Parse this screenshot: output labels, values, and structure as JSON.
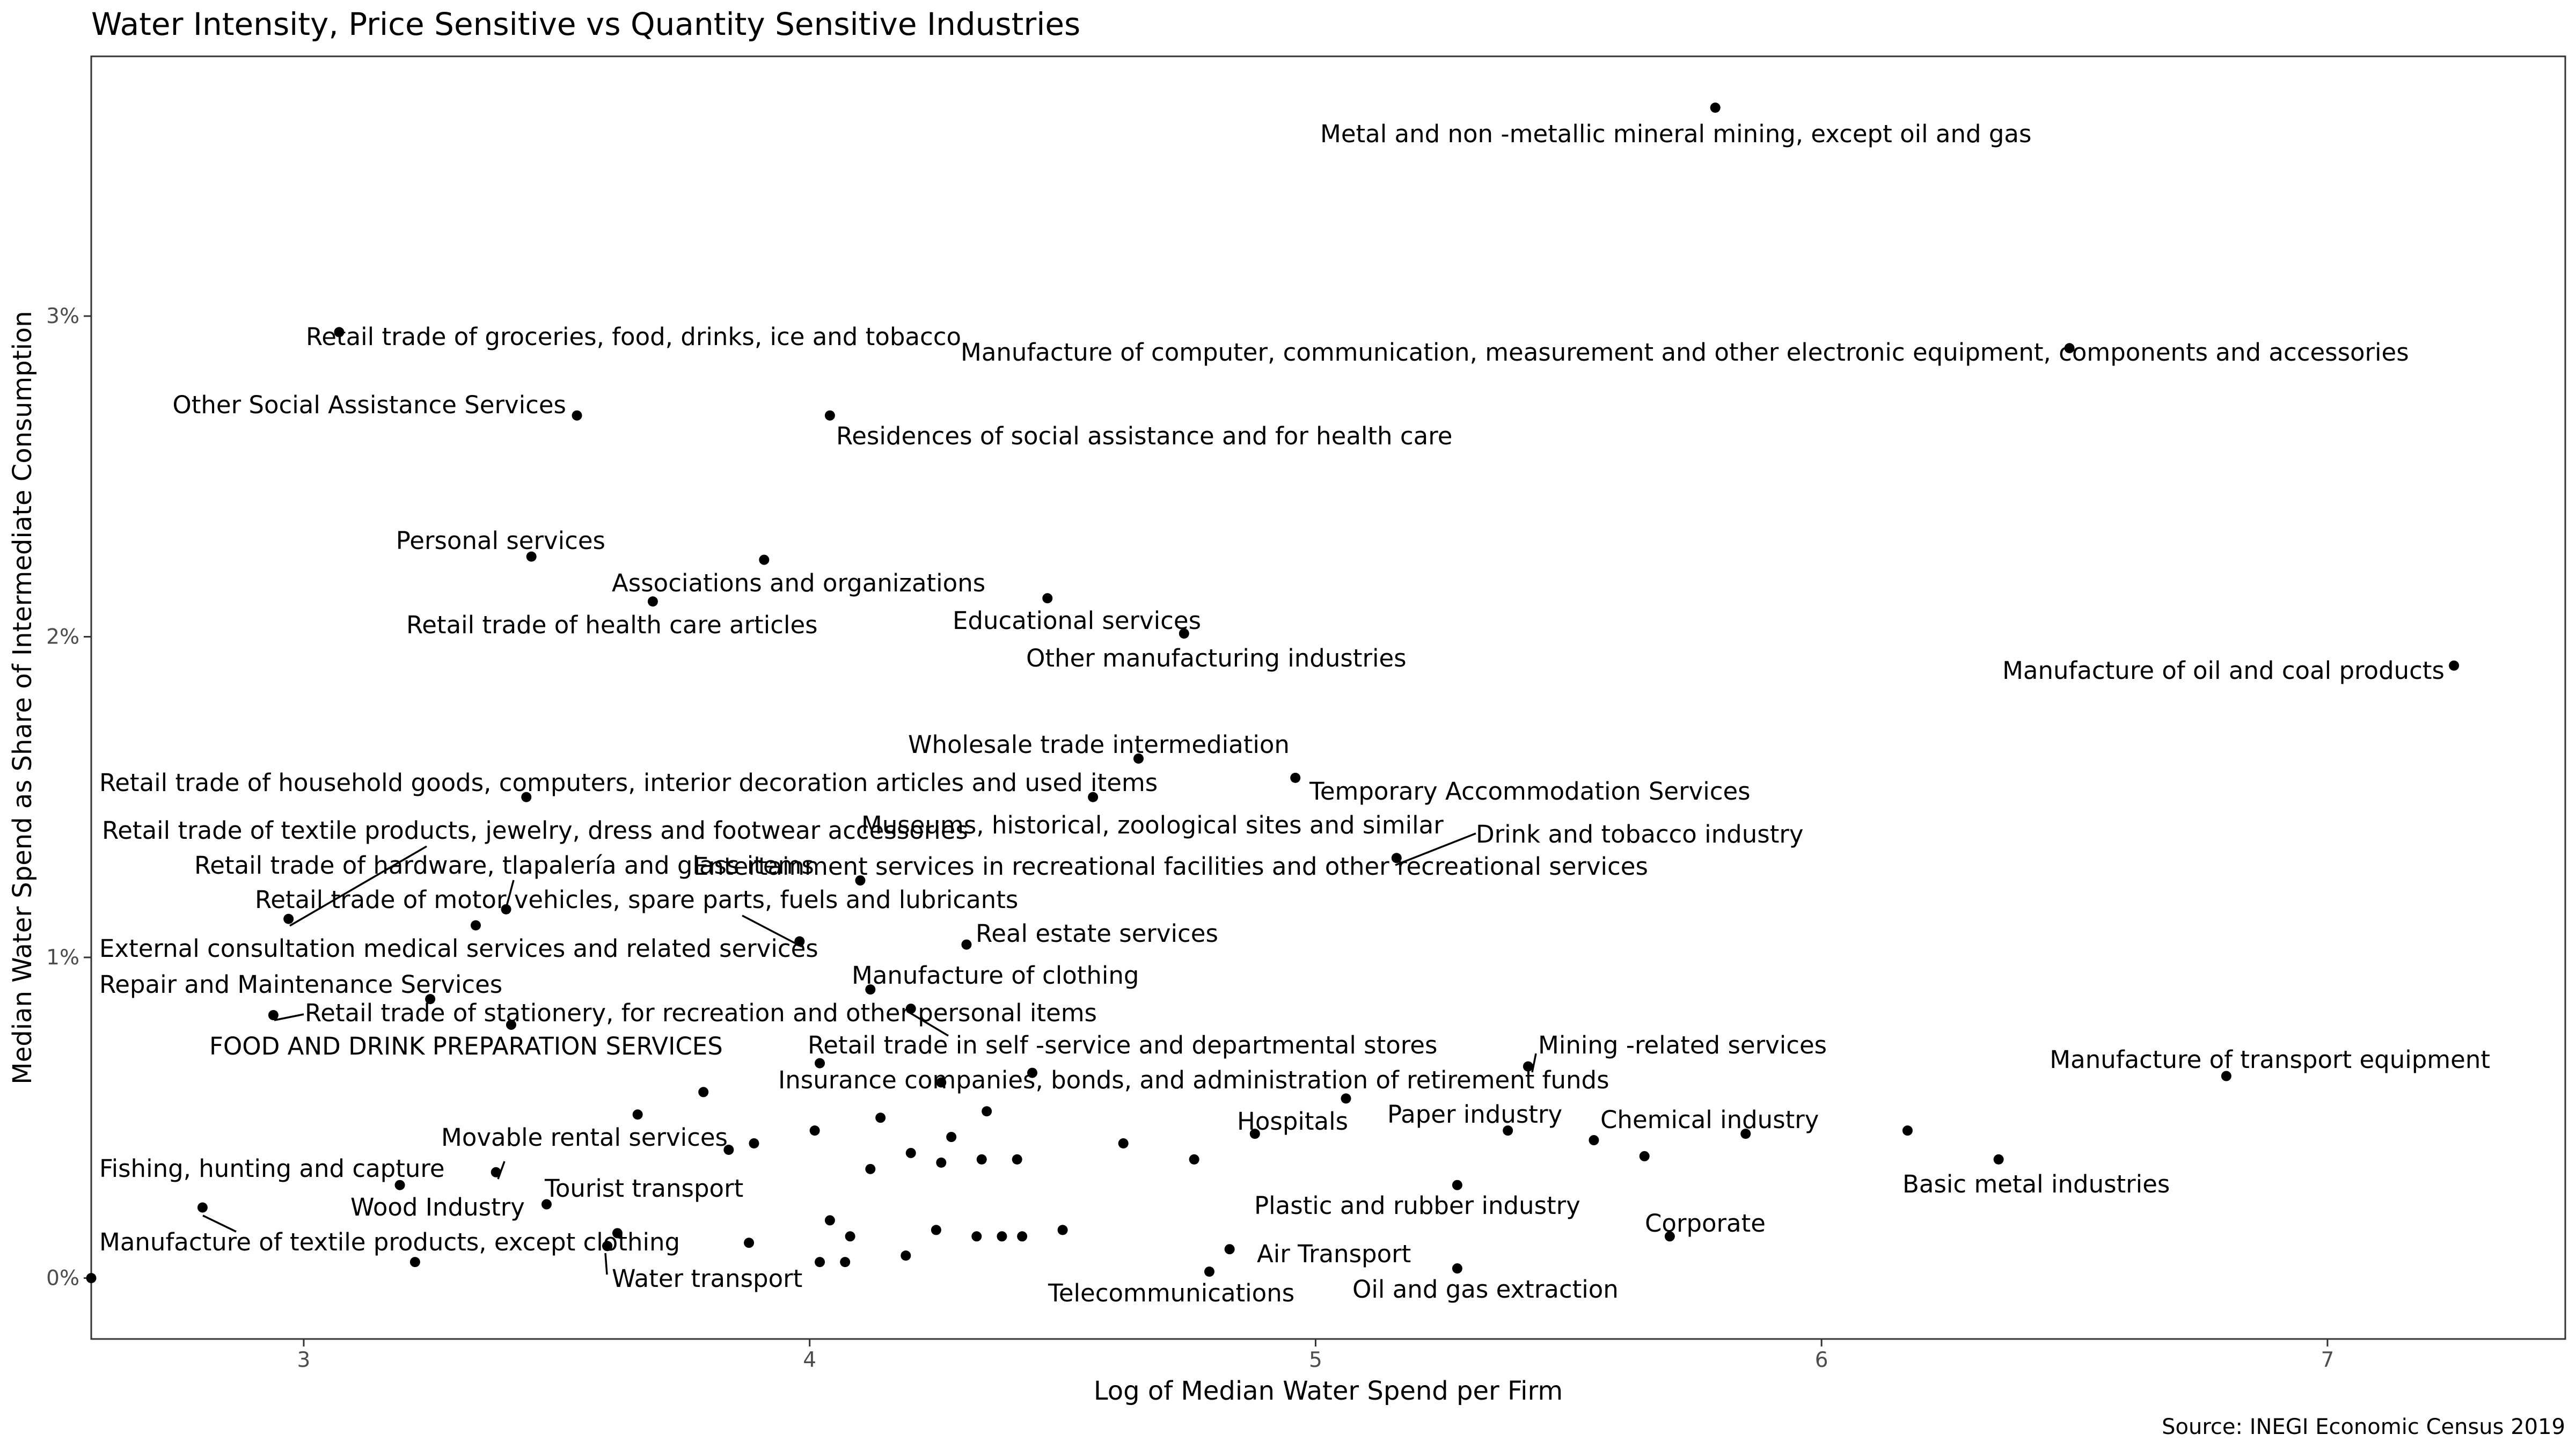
{
  "chart_data": {
    "type": "scatter",
    "title": "Water Intensity, Price Sensitive vs Quantity Sensitive Industries",
    "xlabel": "Log of Median Water Spend per Firm",
    "ylabel": "Median Water Spend as Share of Intermediate Consumption",
    "caption": "Source: INEGI Economic Census 2019",
    "xlim": [
      2.58,
      7.47
    ],
    "ylim": [
      -0.19,
      3.81
    ],
    "x_ticks": [
      3,
      4,
      5,
      6,
      7
    ],
    "y_ticks": [
      0,
      1,
      2,
      3
    ],
    "y_tick_labels": [
      "0%",
      "1%",
      "2%",
      "3%"
    ],
    "y_unit": "percent",
    "grid": false,
    "point_color": "#000000",
    "points": [
      {
        "x": 5.79,
        "y": 3.65,
        "label": "Metal and non -metallic mineral mining, except oil and gas"
      },
      {
        "x": 3.07,
        "y": 2.95,
        "label": "Retail trade of groceries, food, drinks, ice and tobacco"
      },
      {
        "x": 6.49,
        "y": 2.9,
        "label": "Manufacture of computer, communication, measurement and other electronic equipment, components and accessories"
      },
      {
        "x": 3.54,
        "y": 2.69,
        "label": "Other Social Assistance Services"
      },
      {
        "x": 4.04,
        "y": 2.69,
        "label": "Residences of social assistance and for health care"
      },
      {
        "x": 3.45,
        "y": 2.25,
        "label": "Personal services"
      },
      {
        "x": 3.91,
        "y": 2.24,
        "label": "Associations and organizations"
      },
      {
        "x": 3.69,
        "y": 2.11,
        "label": "Retail trade of health care articles"
      },
      {
        "x": 4.47,
        "y": 2.12,
        "label": "Educational services"
      },
      {
        "x": 4.74,
        "y": 2.01,
        "label": "Other manufacturing industries"
      },
      {
        "x": 7.25,
        "y": 1.91,
        "label": "Manufacture of oil and coal products"
      },
      {
        "x": 4.65,
        "y": 1.62,
        "label": "Wholesale trade intermediation"
      },
      {
        "x": 3.44,
        "y": 1.5,
        "label": "Retail trade of household goods, computers, interior decoration articles and used items"
      },
      {
        "x": 4.96,
        "y": 1.56,
        "label": "Temporary Accommodation Services"
      },
      {
        "x": 4.56,
        "y": 1.5,
        "label": "Museums, historical, zoological sites and similar"
      },
      {
        "x": 5.16,
        "y": 1.31,
        "label": "Drink and tobacco industry"
      },
      {
        "x": 2.97,
        "y": 1.12,
        "label": "Retail trade of textile products, jewelry, dress and footwear accessories"
      },
      {
        "x": 3.4,
        "y": 1.15,
        "label": "Retail trade of hardware, tlapalería and glass items"
      },
      {
        "x": 4.1,
        "y": 1.24,
        "label": "Entertainment services in recreational facilities and other recreational services"
      },
      {
        "x": 3.98,
        "y": 1.05,
        "label": "Retail trade of motor vehicles, spare parts, fuels and lubricants"
      },
      {
        "x": 3.34,
        "y": 1.1,
        "label": "External consultation medical services and related services"
      },
      {
        "x": 4.31,
        "y": 1.04,
        "label": "Real estate services"
      },
      {
        "x": 4.12,
        "y": 0.9,
        "label": "Manufacture of clothing"
      },
      {
        "x": 2.94,
        "y": 0.82,
        "label": "Repair and Maintenance Services"
      },
      {
        "x": 3.25,
        "y": 0.87,
        "label": "Retail trade of stationery, for recreation and other personal items"
      },
      {
        "x": 3.41,
        "y": 0.79,
        "label": "FOOD AND DRINK PREPARATION SERVICES"
      },
      {
        "x": 4.2,
        "y": 0.84,
        "label": "Retail trade in self -service and departmental stores"
      },
      {
        "x": 5.42,
        "y": 0.66,
        "label": "Mining -related services"
      },
      {
        "x": 6.8,
        "y": 0.63,
        "label": "Manufacture of transport equipment"
      },
      {
        "x": 4.02,
        "y": 0.67,
        "label": "Insurance companies, bonds, and administration of retirement funds"
      },
      {
        "x": 4.88,
        "y": 0.45,
        "label": "Hospitals"
      },
      {
        "x": 5.38,
        "y": 0.46,
        "label": "Paper industry"
      },
      {
        "x": 5.85,
        "y": 0.45,
        "label": "Chemical industry"
      },
      {
        "x": 3.38,
        "y": 0.33,
        "label": "Movable rental services"
      },
      {
        "x": 6.35,
        "y": 0.37,
        "label": "Basic metal industries"
      },
      {
        "x": 2.8,
        "y": 0.22,
        "label": "Fishing, hunting and capture"
      },
      {
        "x": 3.19,
        "y": 0.29,
        "label": "Wood Industry"
      },
      {
        "x": 3.48,
        "y": 0.23,
        "label": "Tourist transport"
      },
      {
        "x": 5.28,
        "y": 0.29,
        "label": "Plastic and rubber industry"
      },
      {
        "x": 5.7,
        "y": 0.13,
        "label": "Corporate"
      },
      {
        "x": 3.6,
        "y": 0.1,
        "label": "Manufacture of textile products, except clothing"
      },
      {
        "x": 4.83,
        "y": 0.09,
        "label": "Air Transport"
      },
      {
        "x": 3.6,
        "y": 0.1,
        "label": "Water transport"
      },
      {
        "x": 4.79,
        "y": 0.02,
        "label": "Telecommunications"
      },
      {
        "x": 5.28,
        "y": 0.03,
        "label": "Oil and gas extraction"
      },
      {
        "x": 2.58,
        "y": 0.0,
        "label": ""
      },
      {
        "x": 3.22,
        "y": 0.05,
        "label": ""
      },
      {
        "x": 3.62,
        "y": 0.14,
        "label": ""
      },
      {
        "x": 3.66,
        "y": 0.51,
        "label": ""
      },
      {
        "x": 3.79,
        "y": 0.58,
        "label": ""
      },
      {
        "x": 3.84,
        "y": 0.4,
        "label": ""
      },
      {
        "x": 3.88,
        "y": 0.11,
        "label": ""
      },
      {
        "x": 3.89,
        "y": 0.42,
        "label": ""
      },
      {
        "x": 4.01,
        "y": 0.46,
        "label": ""
      },
      {
        "x": 4.02,
        "y": 0.05,
        "label": ""
      },
      {
        "x": 4.04,
        "y": 0.18,
        "label": ""
      },
      {
        "x": 4.07,
        "y": 0.05,
        "label": ""
      },
      {
        "x": 4.08,
        "y": 0.13,
        "label": ""
      },
      {
        "x": 4.12,
        "y": 0.34,
        "label": ""
      },
      {
        "x": 4.14,
        "y": 0.5,
        "label": ""
      },
      {
        "x": 4.19,
        "y": 0.07,
        "label": ""
      },
      {
        "x": 4.2,
        "y": 0.39,
        "label": ""
      },
      {
        "x": 4.25,
        "y": 0.15,
        "label": ""
      },
      {
        "x": 4.26,
        "y": 0.36,
        "label": ""
      },
      {
        "x": 4.26,
        "y": 0.61,
        "label": ""
      },
      {
        "x": 4.28,
        "y": 0.44,
        "label": ""
      },
      {
        "x": 4.33,
        "y": 0.13,
        "label": ""
      },
      {
        "x": 4.34,
        "y": 0.37,
        "label": ""
      },
      {
        "x": 4.35,
        "y": 0.52,
        "label": ""
      },
      {
        "x": 4.38,
        "y": 0.13,
        "label": ""
      },
      {
        "x": 4.41,
        "y": 0.37,
        "label": ""
      },
      {
        "x": 4.42,
        "y": 0.13,
        "label": ""
      },
      {
        "x": 4.44,
        "y": 0.64,
        "label": ""
      },
      {
        "x": 4.5,
        "y": 0.15,
        "label": ""
      },
      {
        "x": 4.62,
        "y": 0.42,
        "label": ""
      },
      {
        "x": 4.76,
        "y": 0.37,
        "label": ""
      },
      {
        "x": 5.06,
        "y": 0.56,
        "label": ""
      },
      {
        "x": 5.55,
        "y": 0.43,
        "label": ""
      },
      {
        "x": 5.65,
        "y": 0.38,
        "label": ""
      },
      {
        "x": 6.17,
        "y": 0.46,
        "label": ""
      }
    ]
  }
}
